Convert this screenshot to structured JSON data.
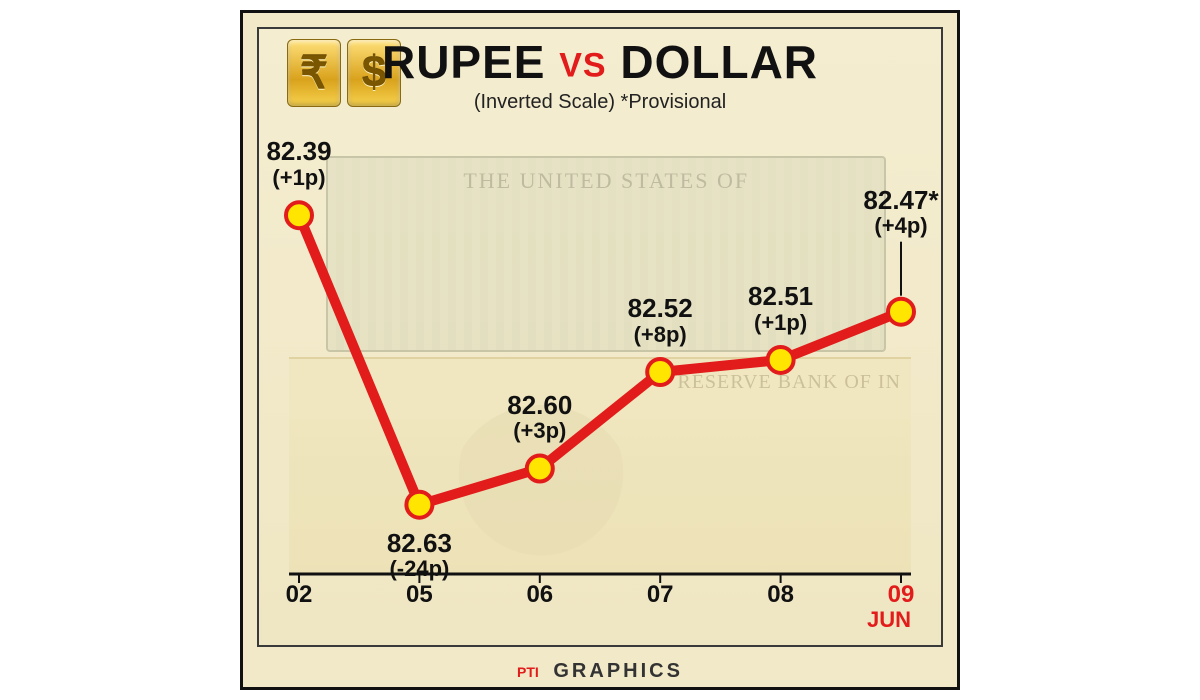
{
  "header": {
    "title_left": "RUPEE",
    "title_vs": "VS",
    "title_right": "DOLLAR",
    "subtitle": "(Inverted Scale)   *Provisional",
    "rupee_symbol": "₹",
    "dollar_symbol": "$"
  },
  "chart": {
    "type": "line",
    "x_labels": [
      "02",
      "05",
      "06",
      "07",
      "08",
      "09"
    ],
    "x_month": "JUN",
    "highlight_last_x": true,
    "inverted_y": true,
    "ylim": [
      82.68,
      82.36
    ],
    "points": [
      {
        "x": "02",
        "value": 82.39,
        "value_label": "82.39",
        "change": "(+1p)",
        "label_pos": "above"
      },
      {
        "x": "05",
        "value": 82.63,
        "value_label": "82.63",
        "change": "(-24p)",
        "label_pos": "below"
      },
      {
        "x": "06",
        "value": 82.6,
        "value_label": "82.60",
        "change": "(+3p)",
        "label_pos": "above"
      },
      {
        "x": "07",
        "value": 82.52,
        "value_label": "82.52",
        "change": "(+8p)",
        "label_pos": "above"
      },
      {
        "x": "08",
        "value": 82.51,
        "value_label": "82.51",
        "change": "(+1p)",
        "label_pos": "above"
      },
      {
        "x": "09",
        "value": 82.47,
        "value_label": "82.47*",
        "change": "(+4p)",
        "label_pos": "above-callout"
      }
    ],
    "line_color": "#e21b1b",
    "line_width": 10,
    "marker_fill": "#ffe500",
    "marker_stroke": "#e21b1b",
    "marker_stroke_width": 4,
    "marker_radius": 13,
    "axis_color": "#111111",
    "background": "#f2e9c8"
  },
  "footer": {
    "source_tag": "PTI",
    "text": "GRAPHICS"
  },
  "colors": {
    "card_bg": "#f2e9c8",
    "accent_red": "#e21b1b",
    "gold_light": "#ffe07a",
    "gold_dark": "#d9a21c",
    "text": "#111111"
  },
  "typography": {
    "title_fontsize": 46,
    "subtitle_fontsize": 20,
    "point_value_fontsize": 26,
    "point_change_fontsize": 22,
    "x_label_fontsize": 24
  }
}
